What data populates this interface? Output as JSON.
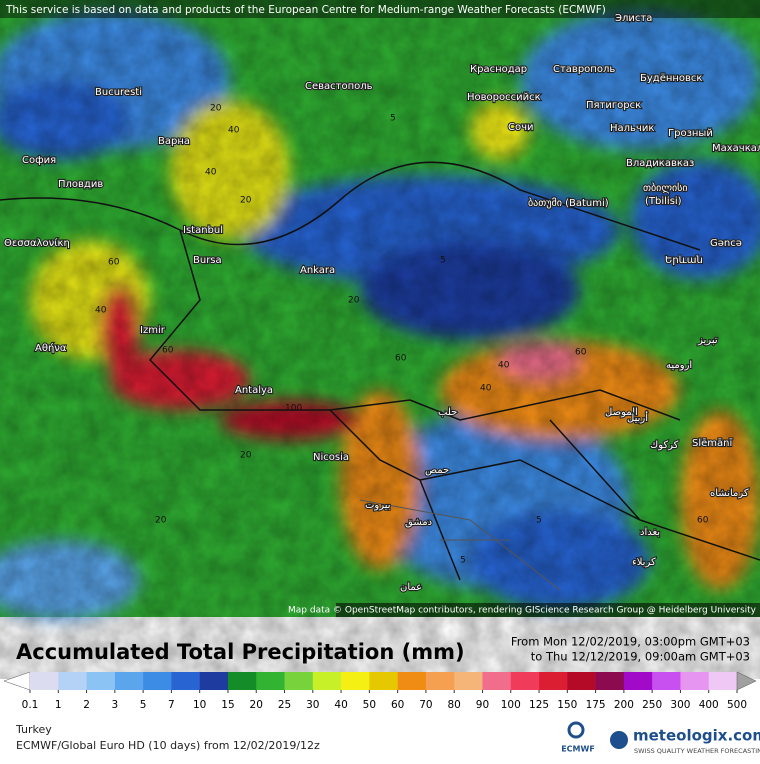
{
  "header": {
    "notice": "This service is based on data and products of the European Centre for Medium-range Weather Forecasts (ECMWF)",
    "map_credit": "Map data © OpenStreetMap contributors, rendering GIScience Research Group @ Heidelberg University"
  },
  "map": {
    "cities": [
      "Bucuresti",
      "Севастополь",
      "Краснодар",
      "Ставрополь",
      "Будённовск",
      "Элиста",
      "Новороссийск",
      "Пятигорск",
      "Нальчик",
      "Грозный",
      "Сочи",
      "Варна",
      "София",
      "Пловдив",
      "Владикавказ",
      "Махачкала",
      "თბილისი",
      "(Tbilisi)",
      "ბათუმი (Batumi)",
      "Istanbul",
      "Gəncə",
      "Θεσσαλονίκη",
      "Bursa",
      "Ankara",
      "Երևան",
      "Izmir",
      "Αθήνα",
      "Antalya",
      "Nicosia",
      "Slēmānī",
      "بيروت",
      "دمشق",
      "عمان",
      "حمص",
      "حلب",
      "الموصل",
      "أربيل",
      "كركوك",
      "كرمانشاه",
      "بغداد",
      "كربلاء",
      "تبريز",
      "ارومیه"
    ],
    "contour_labels": [
      "20",
      "40",
      "5",
      "20",
      "40",
      "60",
      "40",
      "20",
      "5",
      "60",
      "100",
      "60",
      "40",
      "20",
      "5",
      "40",
      "60",
      "20",
      "5",
      "60"
    ]
  },
  "legend": {
    "title": "Accumulated Total Precipitation (mm)",
    "period_from": "From Mon 12/02/2019, 03:00pm GMT+03",
    "period_to": "to Thu 12/12/2019, 09:00am GMT+03",
    "levels": [
      0.1,
      1,
      2,
      3,
      5,
      7,
      10,
      15,
      20,
      25,
      30,
      40,
      50,
      60,
      70,
      80,
      90,
      100,
      125,
      150,
      175,
      200,
      250,
      300,
      400,
      500
    ],
    "colors": [
      "#ffffff",
      "#dcdcf0",
      "#b4d2f5",
      "#8cc3f5",
      "#5aa5eb",
      "#3c8ce6",
      "#2864d2",
      "#1e3ca0",
      "#148c28",
      "#32b432",
      "#78d23c",
      "#c8f028",
      "#f5f014",
      "#e6c800",
      "#f08c14",
      "#f5a050",
      "#f5b478",
      "#f06e8c",
      "#f03c5a",
      "#dc1e32",
      "#b40a28",
      "#8c0a50",
      "#a00ac8",
      "#c850f0",
      "#e696f0",
      "#f0c8f5",
      "#e6e6e6",
      "#a0a0a0"
    ]
  },
  "footer": {
    "region": "Turkey",
    "model": "ECMWF/Global Euro HD (10 days) from 12/02/2019/12z",
    "brand": "meteologix.com",
    "tagline": "SWISS QUALITY WEATHER FORECASTING",
    "ecmwf": "ECMWF"
  }
}
